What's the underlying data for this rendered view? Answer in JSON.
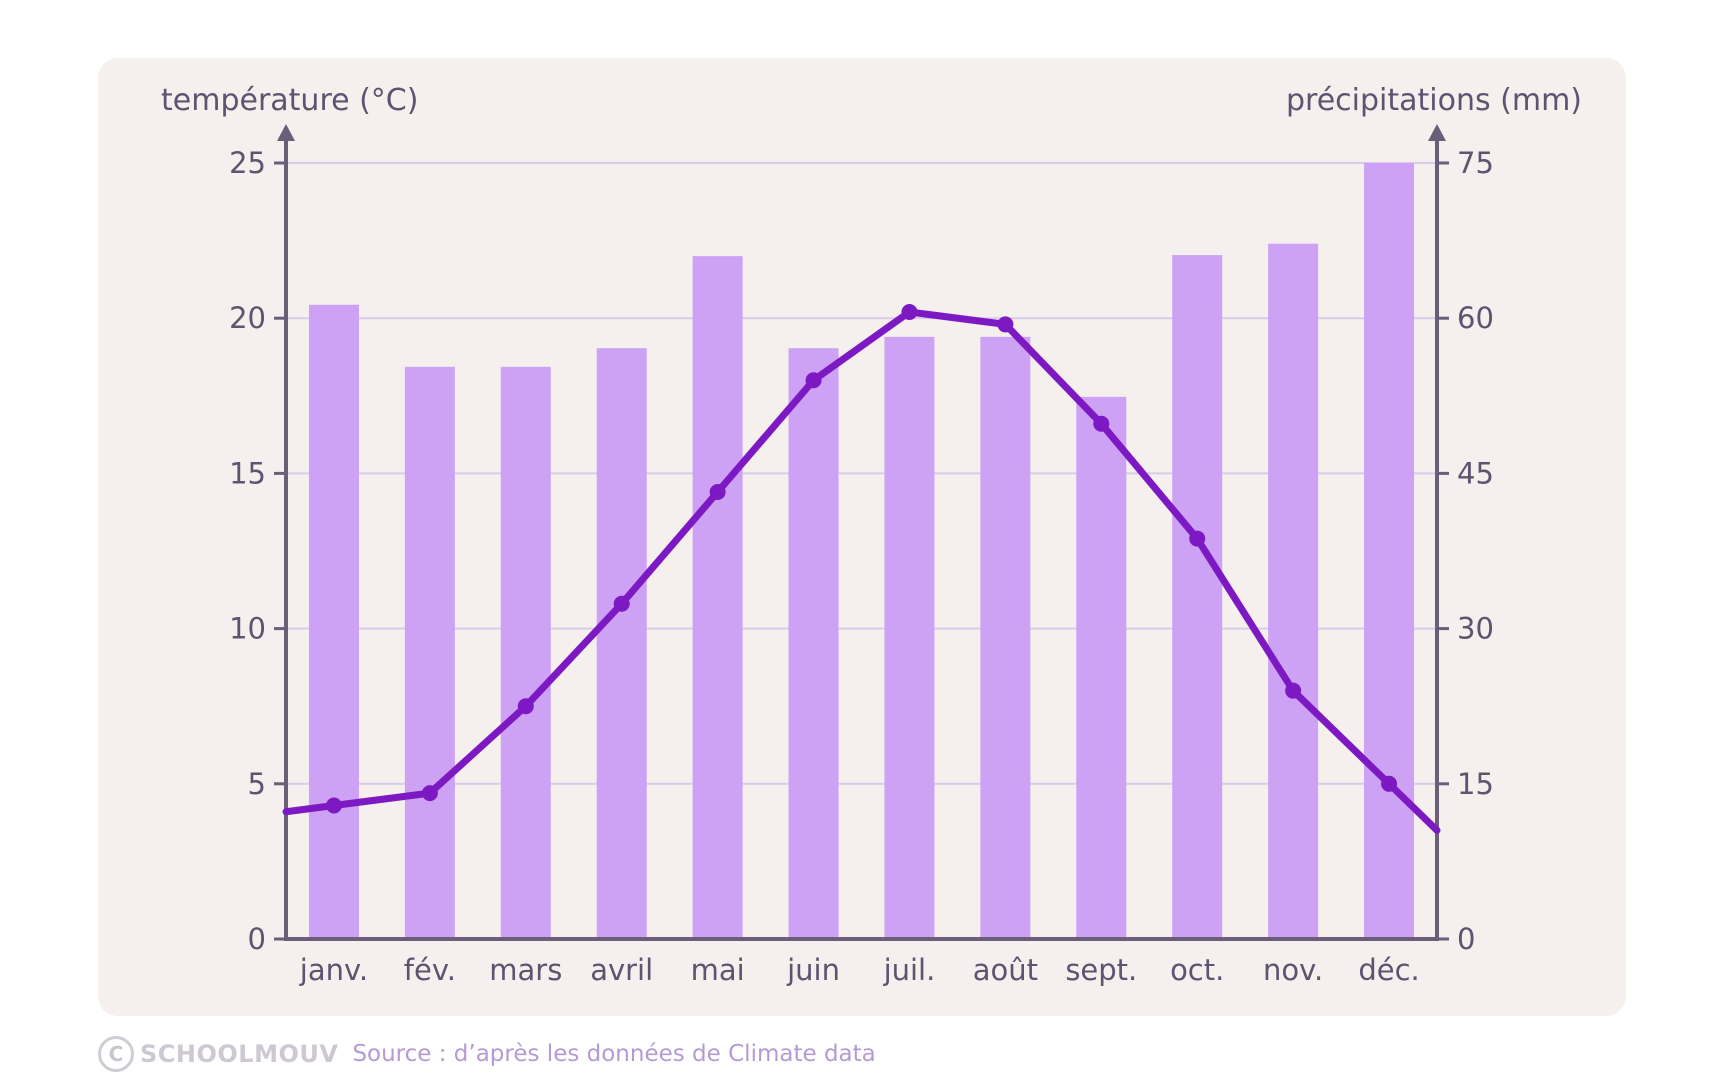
{
  "chart_data": {
    "type": "bar",
    "categories": [
      "janv.",
      "fév.",
      "mars",
      "avril",
      "mai",
      "juin",
      "juil.",
      "août",
      "sept.",
      "oct.",
      "nov.",
      "déc."
    ],
    "series": [
      {
        "type": "bar",
        "axis": "right",
        "values": [
          61.3,
          55.3,
          55.3,
          57.1,
          66.0,
          57.1,
          58.2,
          58.2,
          52.4,
          66.1,
          67.2,
          75.0
        ],
        "color": "#cda2f4"
      },
      {
        "type": "line",
        "axis": "left",
        "values": [
          4.3,
          4.7,
          7.5,
          10.8,
          14.4,
          18.0,
          20.2,
          19.8,
          16.6,
          12.9,
          8.0,
          5.0
        ],
        "color": "#7d19c2"
      }
    ],
    "y_left": {
      "label": "température (°C)",
      "ylim": [
        0,
        25
      ],
      "ticks": [
        0,
        5,
        10,
        15,
        20,
        25
      ]
    },
    "y_right": {
      "label": "précipitations (mm)",
      "ylim": [
        0,
        75
      ],
      "ticks": [
        0,
        15,
        30,
        45,
        60,
        75
      ]
    },
    "grid": true,
    "colors": {
      "panel": "#f5f0ed",
      "axis": "#6b5e78",
      "grid": "#d9cbea",
      "text": "#5f5370"
    }
  },
  "footer": {
    "logo_symbol": "C",
    "logo_text": "SCHOOLMOUV",
    "source": "Source : d’après les données de Climate data"
  }
}
